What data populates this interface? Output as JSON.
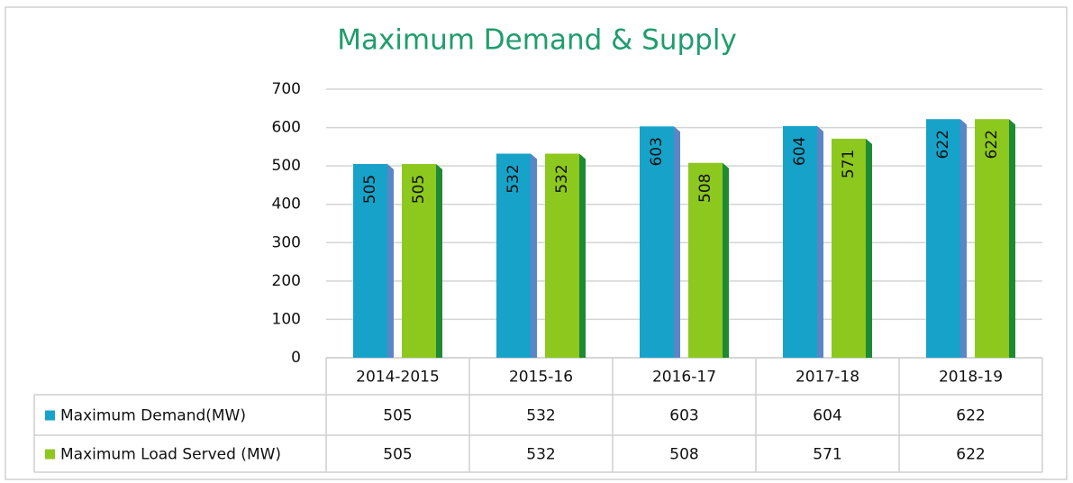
{
  "chart_data": {
    "type": "bar",
    "title": "Maximum Demand & Supply",
    "categories": [
      "2014-2015",
      "2015-16",
      "2016-17",
      "2017-18",
      "2018-19"
    ],
    "series": [
      {
        "name": "Maximum Demand(MW)",
        "color": "#17a3c9",
        "side_color": "#5a86c8",
        "values": [
          505,
          532,
          603,
          604,
          622
        ]
      },
      {
        "name": "Maximum Load Served (MW)",
        "color": "#8dc81f",
        "side_color": "#1e8a33",
        "values": [
          505,
          532,
          508,
          571,
          622
        ]
      }
    ],
    "ylim": [
      0,
      700
    ],
    "yticks": [
      0,
      100,
      200,
      300,
      400,
      500,
      600,
      700
    ],
    "grid": true
  }
}
